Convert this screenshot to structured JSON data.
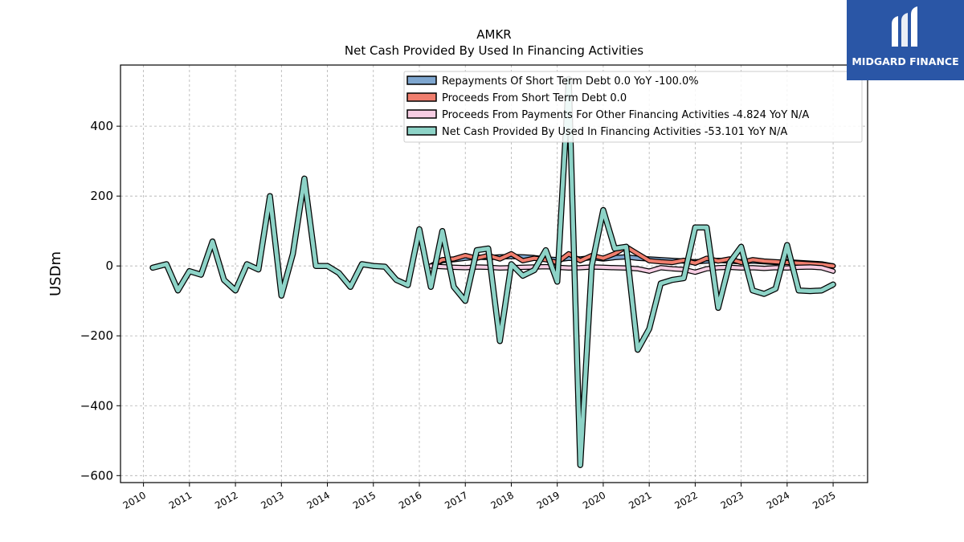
{
  "chart_data": {
    "type": "line",
    "title": "AMKR",
    "subtitle": "Net Cash Provided By Used In Financing Activities",
    "ylabel": "USDm",
    "xlabel": "",
    "ylim": [
      -620,
      575
    ],
    "xlim": [
      2009.5,
      2025.75
    ],
    "yticks": [
      -600,
      -400,
      -200,
      0,
      200,
      400
    ],
    "ytick_labels": [
      "−600",
      "−400",
      "−200",
      "0",
      "200",
      "400"
    ],
    "xticks": [
      2010,
      2011,
      2012,
      2013,
      2014,
      2015,
      2016,
      2017,
      2018,
      2019,
      2020,
      2021,
      2022,
      2023,
      2024,
      2025
    ],
    "xtick_labels": [
      "2010",
      "2011",
      "2012",
      "2013",
      "2014",
      "2015",
      "2016",
      "2017",
      "2018",
      "2019",
      "2020",
      "2021",
      "2022",
      "2023",
      "2024",
      "2025"
    ],
    "grid": true,
    "legend_position": "top-right",
    "series": [
      {
        "name": "Repayments Of Short Term Debt",
        "legend_label": "Repayments Of Short Term Debt  0.0 YoY -100.0%",
        "color": "#7ea6cf",
        "x": [
          2016.25,
          2016.5,
          2016.75,
          2017.0,
          2017.25,
          2017.5,
          2017.75,
          2018.0,
          2018.25,
          2018.5,
          2018.75,
          2019.0,
          2019.25,
          2019.5,
          2019.75,
          2020.0,
          2020.25,
          2020.5,
          2020.75,
          2021.0,
          2021.25,
          2021.5,
          2021.75,
          2022.0,
          2022.25,
          2022.5,
          2022.75,
          2023.0,
          2023.25,
          2023.5,
          2023.75,
          2024.0,
          2024.25,
          2024.5,
          2024.75,
          2025.0
        ],
        "values": [
          0,
          15,
          18,
          22,
          25,
          24,
          26,
          27,
          26,
          24,
          20,
          18,
          22,
          20,
          24,
          20,
          24,
          26,
          22,
          20,
          18,
          16,
          14,
          12,
          14,
          16,
          14,
          12,
          14,
          12,
          10,
          12,
          10,
          8,
          6,
          0
        ]
      },
      {
        "name": "Proceeds From Short Term Debt",
        "legend_label": "Proceeds From Short Term Debt  0.0",
        "color": "#f07e6e",
        "x": [
          2016.25,
          2016.5,
          2016.75,
          2017.0,
          2017.25,
          2017.5,
          2017.75,
          2018.0,
          2018.25,
          2018.5,
          2018.75,
          2019.0,
          2019.25,
          2019.5,
          2019.75,
          2020.0,
          2020.25,
          2020.5,
          2020.75,
          2021.0,
          2021.25,
          2021.5,
          2021.75,
          2022.0,
          2022.25,
          2022.5,
          2022.75,
          2023.0,
          2023.25,
          2023.5,
          2023.75,
          2024.0,
          2024.25,
          2024.5,
          2024.75,
          2025.0
        ],
        "values": [
          0,
          18,
          20,
          30,
          22,
          30,
          20,
          35,
          15,
          22,
          18,
          10,
          35,
          15,
          30,
          22,
          35,
          55,
          35,
          15,
          12,
          10,
          16,
          8,
          22,
          14,
          20,
          10,
          18,
          14,
          12,
          10,
          8,
          6,
          4,
          0
        ]
      },
      {
        "name": "Proceeds From Payments For Other Financing Activities",
        "legend_label": "Proceeds From Payments For Other Financing Activities  -4.824 YoY N/A",
        "color": "#f7cde3",
        "x": [
          2016.25,
          2016.5,
          2016.75,
          2017.0,
          2017.25,
          2017.5,
          2017.75,
          2018.0,
          2018.25,
          2018.5,
          2018.75,
          2019.0,
          2019.25,
          2019.5,
          2019.75,
          2020.0,
          2020.25,
          2020.5,
          2020.75,
          2021.0,
          2021.25,
          2021.5,
          2021.75,
          2022.0,
          2022.25,
          2022.5,
          2022.75,
          2023.0,
          2023.25,
          2023.5,
          2023.75,
          2024.0,
          2024.25,
          2024.5,
          2024.75,
          2025.0
        ],
        "values": [
          0,
          -2,
          -4,
          -5,
          -3,
          -4,
          -6,
          -5,
          -4,
          -3,
          -2,
          -4,
          -6,
          -5,
          -3,
          -4,
          -5,
          -6,
          -8,
          -15,
          -5,
          -8,
          -10,
          -18,
          -8,
          -5,
          -4,
          -6,
          -5,
          -7,
          -5,
          -6,
          -4,
          -3,
          -5,
          -15
        ]
      },
      {
        "name": "Net Cash Provided By Used In Financing Activities",
        "legend_label": "Net Cash Provided By Used In Financing Activities  -53.101 YoY N/A",
        "color": "#8dd3c7",
        "x": [
          2010.2,
          2010.5,
          2010.75,
          2011.0,
          2011.25,
          2011.5,
          2011.75,
          2012.0,
          2012.25,
          2012.5,
          2012.75,
          2013.0,
          2013.25,
          2013.5,
          2013.75,
          2014.0,
          2014.25,
          2014.5,
          2014.75,
          2015.0,
          2015.25,
          2015.5,
          2015.75,
          2016.0,
          2016.25,
          2016.5,
          2016.75,
          2017.0,
          2017.25,
          2017.5,
          2017.75,
          2018.0,
          2018.25,
          2018.5,
          2018.75,
          2019.0,
          2019.25,
          2019.5,
          2019.75,
          2020.0,
          2020.25,
          2020.5,
          2020.75,
          2021.0,
          2021.25,
          2021.5,
          2021.75,
          2022.0,
          2022.25,
          2022.5,
          2022.75,
          2023.0,
          2023.25,
          2023.5,
          2023.75,
          2024.0,
          2024.25,
          2024.5,
          2024.75,
          2025.0
        ],
        "values": [
          -5,
          5,
          -70,
          -15,
          -25,
          70,
          -40,
          -70,
          5,
          -10,
          200,
          -85,
          35,
          250,
          0,
          0,
          -20,
          -60,
          5,
          0,
          -2,
          -40,
          -55,
          105,
          -60,
          100,
          -60,
          -100,
          45,
          50,
          -215,
          5,
          -28,
          -12,
          45,
          -45,
          535,
          -570,
          0,
          160,
          50,
          55,
          -240,
          -180,
          -50,
          -40,
          -35,
          110,
          110,
          -120,
          10,
          55,
          -70,
          -80,
          -65,
          60,
          -70,
          -72,
          -70,
          -53
        ]
      }
    ]
  },
  "logo": {
    "text": "MIDGARD FINANCE",
    "color": "#2a56a6"
  }
}
